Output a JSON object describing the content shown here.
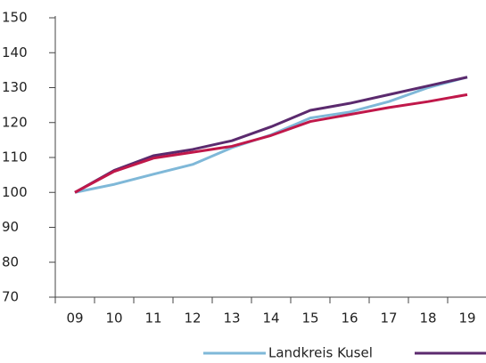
{
  "chart_data": {
    "type": "line",
    "categories": [
      "09",
      "10",
      "11",
      "12",
      "13",
      "14",
      "15",
      "16",
      "17",
      "18",
      "19"
    ],
    "series": [
      {
        "name": "Landkreis Kusel",
        "color": "#7fb8d8",
        "values": [
          100,
          102.3,
          105.2,
          108,
          112.8,
          116.5,
          121.3,
          123,
          126,
          130,
          133
        ]
      },
      {
        "color": "#5b2a6e",
        "values": [
          100,
          106.3,
          110.5,
          112.3,
          114.8,
          118.8,
          123.5,
          125.5,
          128,
          130.5,
          133
        ]
      },
      {
        "color": "#c0184a",
        "values": [
          100,
          106,
          109.8,
          111.5,
          113.2,
          116.3,
          120.3,
          122.3,
          124.3,
          126,
          128
        ]
      }
    ],
    "ylim": [
      70,
      150
    ],
    "yticks": [
      70,
      80,
      90,
      100,
      110,
      120,
      130,
      140,
      150
    ],
    "grid": false
  }
}
